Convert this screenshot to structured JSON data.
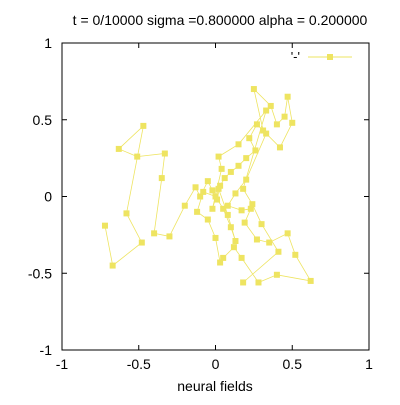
{
  "chart_data": {
    "type": "line",
    "title": "t = 0/10000 sigma =0.800000 alpha = 0.200000",
    "xlabel": "neural fields",
    "ylabel": "",
    "xlim": [
      -1,
      1
    ],
    "ylim": [
      -1,
      1
    ],
    "xticks": [
      "-1",
      "-0.5",
      "0",
      "0.5",
      "1"
    ],
    "yticks": [
      "-1",
      "-0.5",
      "0",
      "0.5",
      "1"
    ],
    "xtick_values": [
      -1,
      -0.5,
      0,
      0.5,
      1
    ],
    "ytick_values": [
      -1,
      -0.5,
      0,
      0.5,
      1
    ],
    "grid": false,
    "legend_position": "top-right",
    "series": [
      {
        "name": "'-'",
        "color": "#eee461",
        "marker": "square",
        "points": [
          [
            -0.72,
            -0.19
          ],
          [
            -0.67,
            -0.45
          ],
          [
            -0.48,
            -0.3
          ],
          [
            -0.58,
            -0.11
          ],
          [
            -0.47,
            0.46
          ],
          [
            -0.63,
            0.31
          ],
          [
            -0.51,
            0.26
          ],
          [
            -0.33,
            0.28
          ],
          [
            -0.35,
            0.12
          ],
          [
            -0.4,
            -0.24
          ],
          [
            -0.3,
            -0.26
          ],
          [
            -0.2,
            -0.06
          ],
          [
            -0.13,
            0.06
          ],
          [
            -0.1,
            0.0
          ],
          [
            -0.05,
            0.1
          ],
          [
            -0.02,
            0.04
          ],
          [
            0.01,
            -0.02
          ],
          [
            0.03,
            0.07
          ],
          [
            0.06,
            0.12
          ],
          [
            0.1,
            0.16
          ],
          [
            0.15,
            0.2
          ],
          [
            0.2,
            0.25
          ],
          [
            0.26,
            0.3
          ],
          [
            0.22,
            0.38
          ],
          [
            0.27,
            0.47
          ],
          [
            0.31,
            0.43
          ],
          [
            0.25,
            0.7
          ],
          [
            0.36,
            0.59
          ],
          [
            0.4,
            0.47
          ],
          [
            0.45,
            0.52
          ],
          [
            0.47,
            0.65
          ],
          [
            0.5,
            0.48
          ],
          [
            0.42,
            0.32
          ],
          [
            0.33,
            0.41
          ],
          [
            0.2,
            0.11
          ],
          [
            0.13,
            0.02
          ],
          [
            0.08,
            -0.06
          ],
          [
            0.17,
            -0.09
          ],
          [
            0.23,
            -0.08
          ],
          [
            0.19,
            -0.17
          ],
          [
            0.27,
            -0.28
          ],
          [
            0.35,
            -0.3
          ],
          [
            0.47,
            -0.24
          ],
          [
            0.52,
            -0.38
          ],
          [
            0.62,
            -0.55
          ],
          [
            0.4,
            -0.51
          ],
          [
            0.28,
            -0.56
          ],
          [
            0.17,
            -0.4
          ],
          [
            0.12,
            -0.33
          ],
          [
            0.05,
            -0.4
          ],
          [
            0.03,
            -0.43
          ],
          [
            0.0,
            -0.27
          ],
          [
            -0.05,
            -0.15
          ],
          [
            -0.12,
            -0.1
          ],
          [
            -0.08,
            0.03
          ],
          [
            0.0,
            0.0
          ],
          [
            0.05,
            -0.08
          ],
          [
            0.1,
            -0.2
          ],
          [
            0.13,
            -0.29
          ],
          [
            0.08,
            -0.12
          ],
          [
            0.02,
            0.05
          ],
          [
            -0.02,
            -0.08
          ],
          [
            0.04,
            0.18
          ],
          [
            0.02,
            0.26
          ],
          [
            0.15,
            0.34
          ],
          [
            0.33,
            0.56
          ],
          [
            0.18,
            0.05
          ],
          [
            0.24,
            -0.05
          ],
          [
            0.3,
            -0.18
          ],
          [
            0.41,
            -0.36
          ],
          [
            0.18,
            -0.56
          ]
        ]
      }
    ]
  }
}
